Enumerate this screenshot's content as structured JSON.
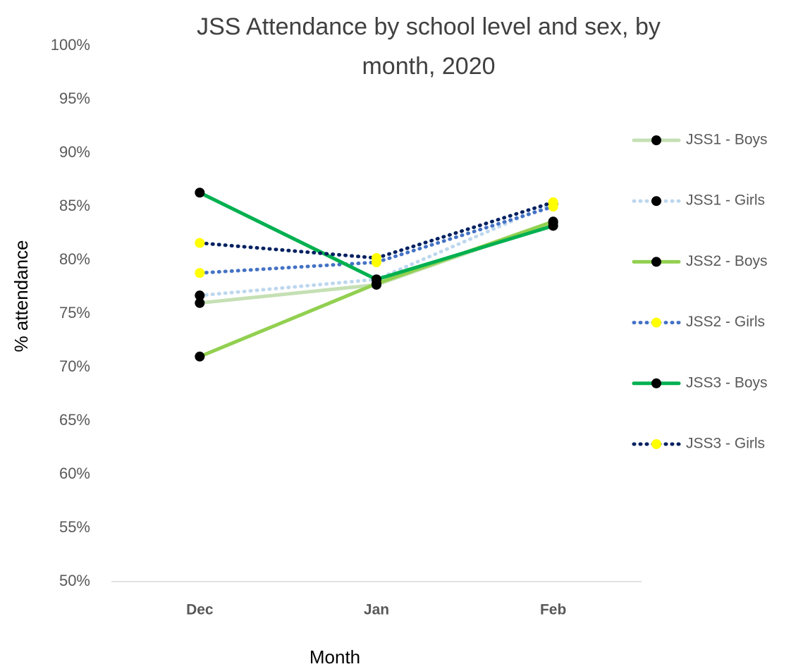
{
  "chart_data": {
    "type": "line",
    "title": "JSS Attendance by school level and sex, by month, 2020",
    "x_label": "Month",
    "y_label": "% attendance",
    "categories": [
      "Dec",
      "Jan",
      "Feb"
    ],
    "ylim": [
      50,
      100
    ],
    "yticks": [
      {
        "value": 50,
        "label": "50%"
      },
      {
        "value": 55,
        "label": "55%"
      },
      {
        "value": 60,
        "label": "60%"
      },
      {
        "value": 65,
        "label": "65%"
      },
      {
        "value": 70,
        "label": "70%"
      },
      {
        "value": 75,
        "label": "75%"
      },
      {
        "value": 80,
        "label": "80%"
      },
      {
        "value": 85,
        "label": "85%"
      },
      {
        "value": 90,
        "label": "90%"
      },
      {
        "value": 95,
        "label": "95%"
      },
      {
        "value": 100,
        "label": "100%"
      }
    ],
    "grid": false,
    "legend": "right",
    "series": [
      {
        "name": "JSS1 - Boys",
        "color": "#c5e0b4",
        "dash": "solid",
        "marker_color": "#000000",
        "values": [
          76.0,
          77.7,
          83.5
        ]
      },
      {
        "name": "JSS1 - Girls",
        "color": "#bdd7ee",
        "dash": "dotted",
        "marker_color": "#000000",
        "values": [
          76.7,
          78.2,
          85.3
        ]
      },
      {
        "name": "JSS2 - Boys",
        "color": "#92d050",
        "dash": "solid",
        "marker_color": "#000000",
        "values": [
          71.0,
          77.8,
          83.6
        ]
      },
      {
        "name": "JSS2 - Girls",
        "color": "#4472c4",
        "dash": "dotted",
        "marker_color": "#ffff00",
        "values": [
          78.8,
          79.8,
          85.0
        ]
      },
      {
        "name": "JSS3 - Boys",
        "color": "#00b050",
        "dash": "solid",
        "marker_color": "#000000",
        "values": [
          86.3,
          78.2,
          83.2
        ]
      },
      {
        "name": "JSS3 - Girls",
        "color": "#002060",
        "dash": "dotted",
        "marker_color": "#ffff00",
        "values": [
          81.6,
          80.2,
          85.4
        ]
      }
    ]
  }
}
